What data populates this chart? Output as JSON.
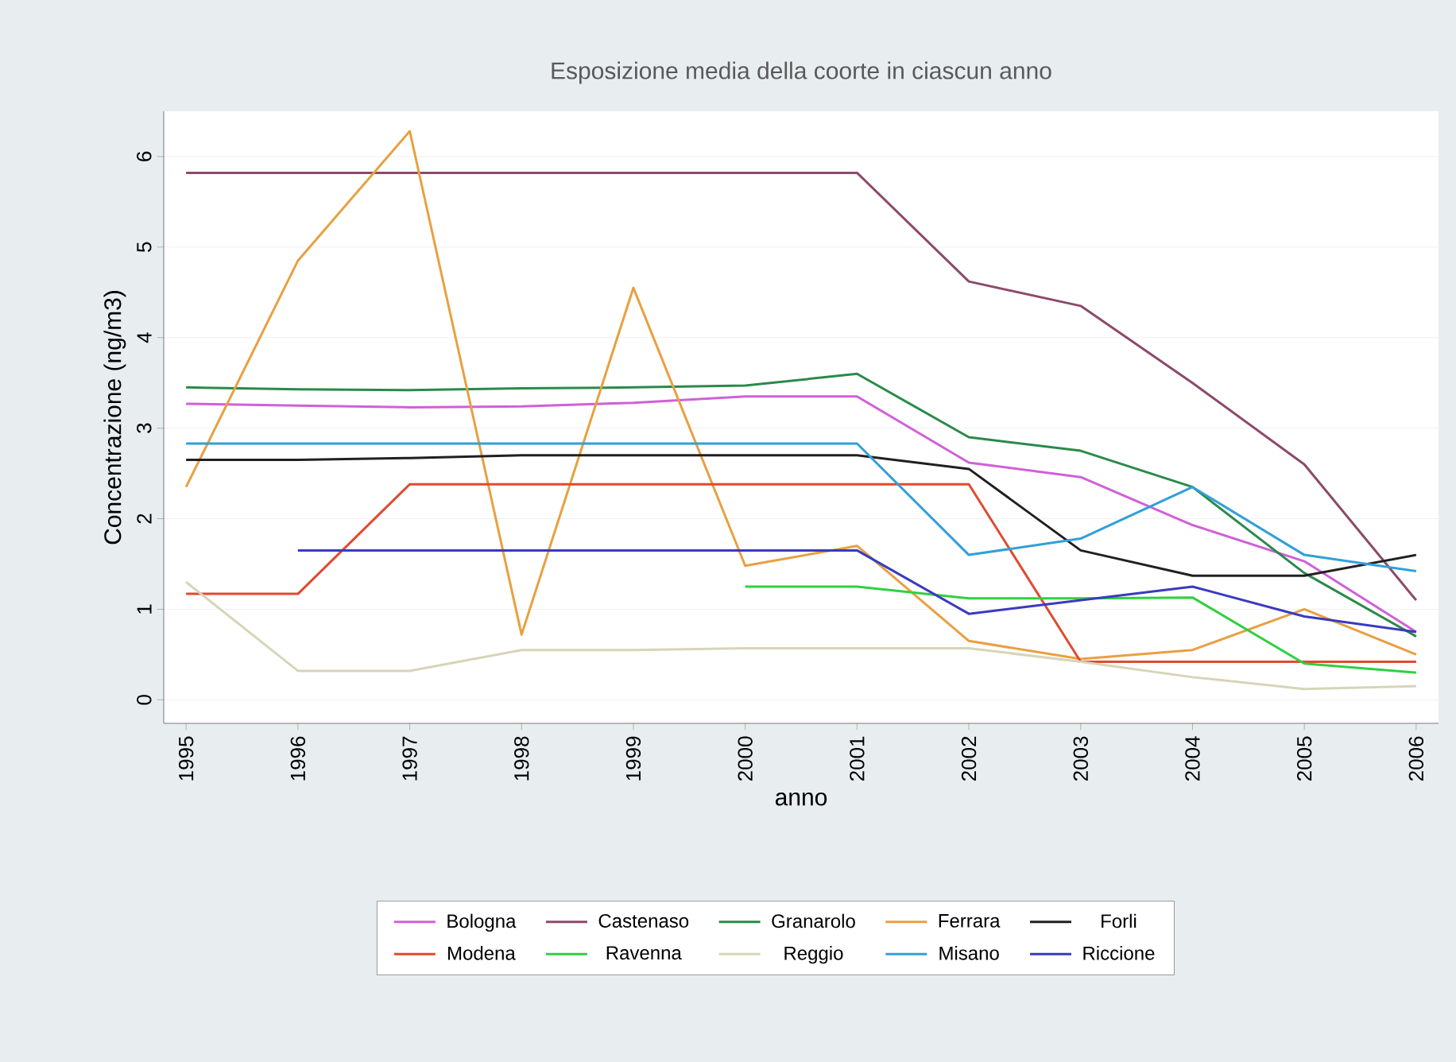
{
  "chart_data": {
    "type": "line",
    "title": "Esposizione media della coorte in ciascun anno",
    "xlabel": "anno",
    "ylabel": "Concentrazione (ng/m3)",
    "x": [
      1995,
      1996,
      1997,
      1998,
      1999,
      2000,
      2001,
      2002,
      2003,
      2004,
      2005,
      2006
    ],
    "xlim": [
      1994.8,
      2006.2
    ],
    "ylim": [
      -0.26,
      6.5
    ],
    "xticks": [
      1995,
      1996,
      1997,
      1998,
      1999,
      2000,
      2001,
      2002,
      2003,
      2004,
      2005,
      2006
    ],
    "yticks": [
      0,
      1,
      2,
      3,
      4,
      5,
      6
    ],
    "grid": "y",
    "legend": "bottom",
    "marker": "none",
    "line_style": "solid",
    "series": [
      {
        "name": "Bologna",
        "color": "#d060d8",
        "values": [
          3.27,
          3.25,
          3.23,
          3.24,
          3.28,
          3.35,
          3.35,
          2.62,
          2.46,
          1.93,
          1.53,
          0.75
        ]
      },
      {
        "name": "Castenaso",
        "color": "#8c4a6a",
        "values": [
          5.82,
          5.82,
          5.82,
          5.82,
          5.82,
          5.82,
          5.82,
          4.62,
          4.35,
          3.5,
          2.6,
          1.1
        ]
      },
      {
        "name": "Granarolo",
        "color": "#2a8a4a",
        "values": [
          3.45,
          3.43,
          3.42,
          3.44,
          3.45,
          3.47,
          3.6,
          2.9,
          2.75,
          2.35,
          1.4,
          0.7
        ]
      },
      {
        "name": "Ferrara",
        "color": "#e8a040",
        "values": [
          2.35,
          4.85,
          6.28,
          0.72,
          4.55,
          1.48,
          1.7,
          0.65,
          0.45,
          0.55,
          1.0,
          0.5
        ]
      },
      {
        "name": "Forli",
        "color": "#202020",
        "values": [
          2.65,
          2.65,
          2.67,
          2.7,
          2.7,
          2.7,
          2.7,
          2.55,
          1.65,
          1.37,
          1.37,
          1.6
        ]
      },
      {
        "name": "Modena",
        "color": "#e04a30",
        "values": [
          1.17,
          1.17,
          2.38,
          2.38,
          2.38,
          2.38,
          2.38,
          2.38,
          0.42,
          0.42,
          0.42,
          0.42
        ]
      },
      {
        "name": "Ravenna",
        "color": "#30d040",
        "values": [
          null,
          null,
          null,
          null,
          null,
          1.25,
          1.25,
          1.12,
          1.12,
          1.13,
          0.4,
          0.3
        ]
      },
      {
        "name": "Reggio",
        "color": "#d8d4b8",
        "values": [
          1.3,
          0.32,
          0.32,
          0.55,
          0.55,
          0.57,
          0.57,
          0.57,
          0.42,
          0.25,
          0.12,
          0.15
        ]
      },
      {
        "name": "Misano",
        "color": "#30a0d8",
        "values": [
          2.83,
          2.83,
          2.83,
          2.83,
          2.83,
          2.83,
          2.83,
          1.6,
          1.78,
          2.35,
          1.6,
          1.42
        ]
      },
      {
        "name": "Riccione",
        "color": "#3a3ac0",
        "values": [
          null,
          1.65,
          1.65,
          1.65,
          1.65,
          1.65,
          1.65,
          0.95,
          1.1,
          1.25,
          0.92,
          0.75
        ]
      }
    ]
  }
}
